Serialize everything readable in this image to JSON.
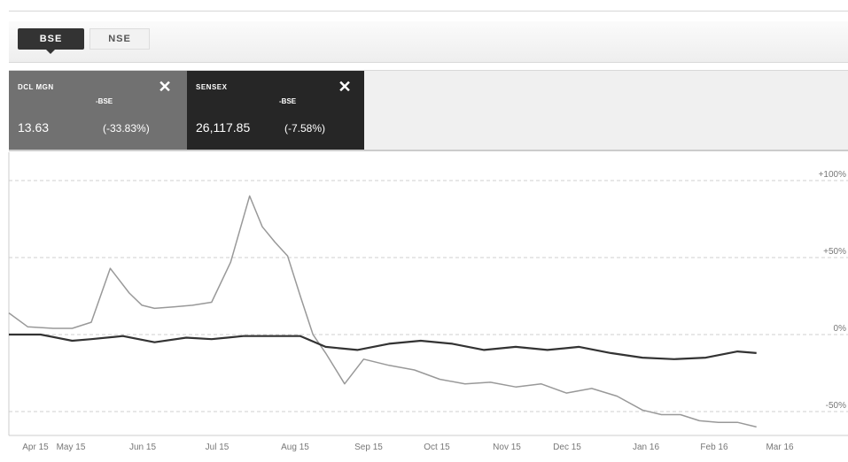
{
  "tabs": [
    {
      "label": "BSE",
      "active": true
    },
    {
      "label": "NSE",
      "active": false
    }
  ],
  "cards": [
    {
      "name": "DCL MGN",
      "exchange": "-BSE",
      "price": "13.63",
      "change": "(-33.83%)",
      "color": "#717171"
    },
    {
      "name": "SENSEX",
      "exchange": "-BSE",
      "price": "26,117.85",
      "change": "(-7.58%)",
      "color": "#262626"
    }
  ],
  "chart_data": {
    "type": "line",
    "x_ticks": [
      "Apr 15",
      "May 15",
      "Jun 15",
      "Jul 15",
      "Aug 15",
      "Sep 15",
      "Oct 15",
      "Nov 15",
      "Dec 15",
      "Jan 16",
      "Feb 16",
      "Mar 16"
    ],
    "y_ticks": [
      "+100%",
      "+50%",
      "0%",
      "-50%"
    ],
    "ylim": [
      -60,
      105
    ],
    "grid": true,
    "series": [
      {
        "name": "DCL MGN",
        "color": "#999999",
        "x": [
          0,
          0.3,
          0.7,
          1.0,
          1.3,
          1.6,
          1.9,
          2.1,
          2.3,
          2.6,
          2.9,
          3.2,
          3.5,
          3.8,
          4.0,
          4.2,
          4.4,
          4.6,
          4.8,
          5.0,
          5.3,
          5.6,
          6.0,
          6.4,
          6.8,
          7.2,
          7.6,
          8.0,
          8.4,
          8.8,
          9.2,
          9.6,
          10.0,
          10.3,
          10.6,
          10.9,
          11.2,
          11.5,
          11.8
        ],
        "y": [
          14,
          5,
          4,
          4,
          8,
          43,
          27,
          19,
          17,
          18,
          19,
          21,
          47,
          90,
          70,
          60,
          51,
          25,
          0,
          -12,
          -32,
          -16,
          -20,
          -23,
          -29,
          -32,
          -31,
          -34,
          -32,
          -38,
          -35,
          -40,
          -49,
          -52,
          -52,
          -56,
          -57,
          -57,
          -60
        ]
      },
      {
        "name": "SENSEX",
        "color": "#333333",
        "x": [
          0,
          0.5,
          1.0,
          1.3,
          1.8,
          2.3,
          2.8,
          3.2,
          3.7,
          4.2,
          4.6,
          5.0,
          5.5,
          6.0,
          6.5,
          7.0,
          7.5,
          8.0,
          8.5,
          9.0,
          9.5,
          10.0,
          10.5,
          11.0,
          11.5,
          11.8
        ],
        "y": [
          0,
          0,
          -4,
          -3,
          -1,
          -5,
          -2,
          -3,
          -1,
          -1,
          -1,
          -8,
          -10,
          -6,
          -4,
          -6,
          -10,
          -8,
          -10,
          -8,
          -12,
          -15,
          -16,
          -15,
          -11,
          -12
        ]
      }
    ]
  }
}
